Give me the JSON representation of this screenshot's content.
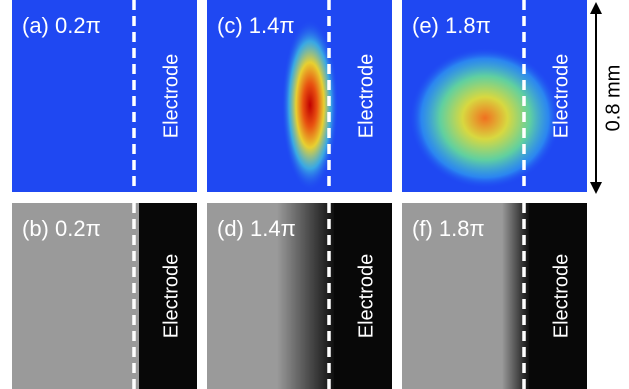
{
  "panels": [
    {
      "label": "(a) 0.2π",
      "electrode": "Electrode"
    },
    {
      "label": "(b) 0.2π",
      "electrode": "Electrode"
    },
    {
      "label": "(c) 1.4π",
      "electrode": "Electrode"
    },
    {
      "label": "(d) 1.4π",
      "electrode": "Electrode"
    },
    {
      "label": "(e) 1.8π",
      "electrode": "Electrode"
    },
    {
      "label": "(f) 1.8π",
      "electrode": "Electrode"
    }
  ],
  "scale_bar": "0.8 mm"
}
